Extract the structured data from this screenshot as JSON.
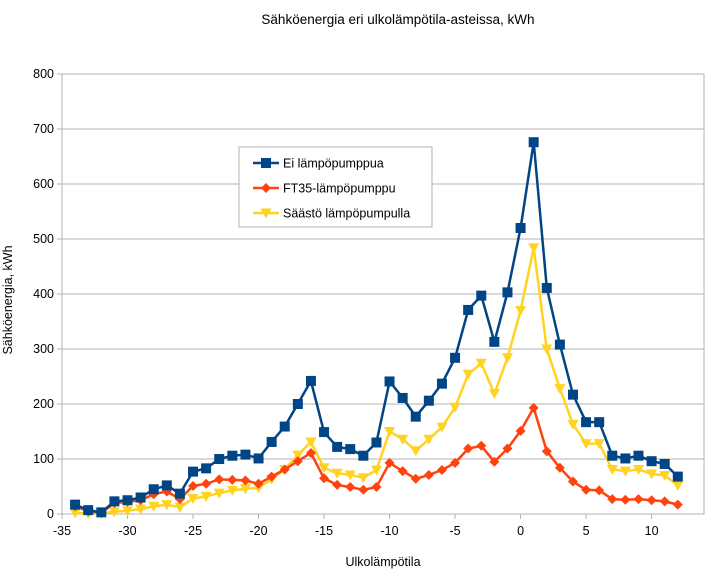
{
  "chart_data": {
    "type": "line",
    "title": "Sähköenergia eri ulkolämpötila-asteissa, kWh",
    "xlabel": "Ulkolämpötila",
    "ylabel": "Sähköenergia, kWh",
    "xlim": [
      -35,
      14
    ],
    "ylim": [
      0,
      800
    ],
    "xticks": [
      -35,
      -30,
      -25,
      -20,
      -15,
      -10,
      -5,
      0,
      5,
      10
    ],
    "xtick_labels": [
      "-35",
      "-30",
      "-25",
      "-20",
      "-15",
      "-10",
      "-5",
      "0",
      "5",
      "10"
    ],
    "yticks": [
      0,
      100,
      200,
      300,
      400,
      500,
      600,
      700,
      800
    ],
    "ytick_labels": [
      "0",
      "100",
      "200",
      "300",
      "400",
      "500",
      "600",
      "700",
      "800"
    ],
    "grid": "horizontal",
    "legend_position": "upper-center-left",
    "x": [
      -34,
      -33,
      -32,
      -31,
      -30,
      -29,
      -28,
      -27,
      -26,
      -25,
      -24,
      -23,
      -22,
      -21,
      -20,
      -19,
      -18,
      -17,
      -16,
      -15,
      -14,
      -13,
      -12,
      -11,
      -10,
      -9,
      -8,
      -7,
      -6,
      -5,
      -4,
      -3,
      -2,
      -1,
      0,
      1,
      2,
      3,
      4,
      5,
      6,
      7,
      8,
      9,
      10,
      11,
      12
    ],
    "series": [
      {
        "name": "Ei lämpöpumppua",
        "color": "#004586",
        "marker": "square",
        "values": [
          17,
          7,
          3,
          23,
          25,
          30,
          45,
          52,
          37,
          77,
          83,
          100,
          106,
          108,
          101,
          131,
          159,
          200,
          242,
          149,
          122,
          118,
          106,
          130,
          241,
          211,
          177,
          206,
          237,
          284,
          371,
          397,
          313,
          403,
          520,
          676,
          411,
          308,
          217,
          167,
          167,
          106,
          101,
          106,
          96,
          91,
          68
        ]
      },
      {
        "name": "FT35-lämpöpumppu",
        "color": "#ff420e",
        "marker": "diamond",
        "values": [
          14,
          5,
          2,
          20,
          22,
          25,
          36,
          41,
          27,
          51,
          55,
          63,
          62,
          61,
          55,
          68,
          81,
          96,
          111,
          65,
          53,
          49,
          44,
          49,
          93,
          78,
          64,
          71,
          80,
          93,
          119,
          124,
          95,
          119,
          151,
          193,
          114,
          84,
          59,
          44,
          43,
          27,
          26,
          27,
          25,
          23,
          17
        ]
      },
      {
        "name": "Säästö lämpöpumpulla",
        "color": "#ffd320",
        "marker": "triangle-down",
        "values": [
          2,
          1,
          1,
          4,
          6,
          9,
          14,
          17,
          12,
          28,
          32,
          38,
          43,
          46,
          48,
          63,
          81,
          107,
          131,
          84,
          74,
          71,
          66,
          80,
          150,
          136,
          115,
          136,
          158,
          194,
          254,
          274,
          219,
          284,
          370,
          484,
          300,
          228,
          163,
          128,
          128,
          81,
          78,
          81,
          73,
          70,
          52
        ]
      }
    ]
  }
}
